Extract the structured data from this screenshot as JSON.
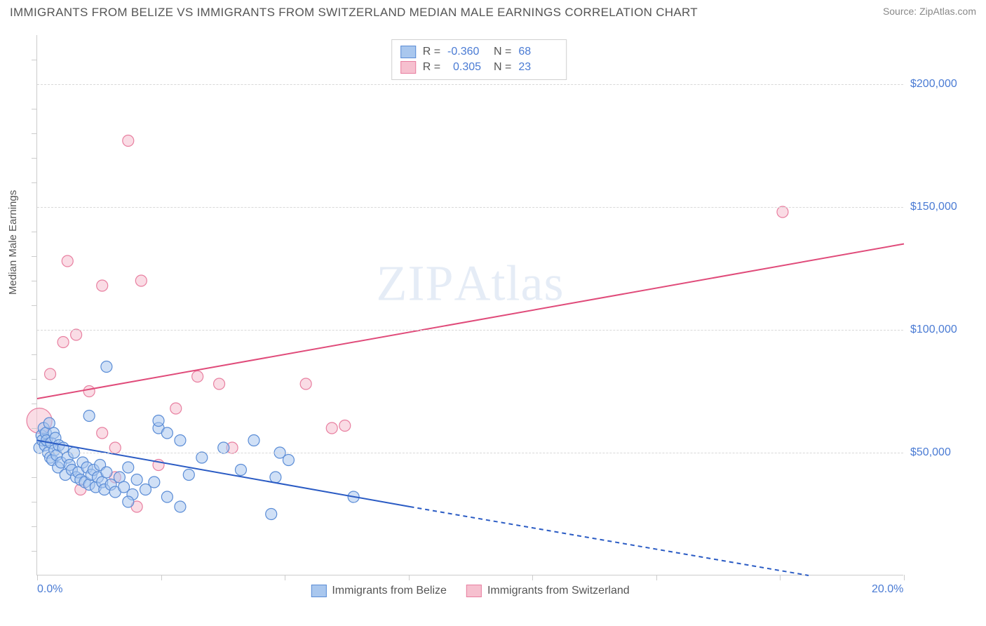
{
  "title": "IMMIGRANTS FROM BELIZE VS IMMIGRANTS FROM SWITZERLAND MEDIAN MALE EARNINGS CORRELATION CHART",
  "source": "Source: ZipAtlas.com",
  "ylabel": "Median Male Earnings",
  "watermark": "ZIPAtlas",
  "chart": {
    "type": "scatter",
    "background_color": "#ffffff",
    "grid_color": "#d8d8d8",
    "axis_color": "#cccccc",
    "tick_label_color": "#4a7bd4",
    "xlim": [
      0,
      20
    ],
    "ylim": [
      0,
      220000
    ],
    "x_ticks": [
      0,
      2.86,
      5.71,
      8.57,
      11.43,
      14.29,
      17.14,
      20
    ],
    "x_tick_labels": {
      "0": "0.0%",
      "20": "20.0%"
    },
    "y_grid": [
      50000,
      100000,
      150000,
      200000
    ],
    "y_tick_labels": [
      "$50,000",
      "$100,000",
      "$150,000",
      "$200,000"
    ],
    "y_minor_ticks": [
      10000,
      20000,
      30000,
      40000,
      60000,
      70000,
      80000,
      90000,
      110000,
      120000,
      130000,
      140000,
      160000,
      170000,
      180000,
      190000,
      210000
    ],
    "series": [
      {
        "name": "Immigrants from Belize",
        "color_fill": "#a9c7ee",
        "color_stroke": "#5a8cd6",
        "marker_radius": 8,
        "fill_opacity": 0.55,
        "R": "-0.360",
        "N": "68",
        "trend": {
          "x1": 0,
          "y1": 55000,
          "x2": 8.6,
          "y2": 28000,
          "dash_x2": 17.8,
          "dash_y2": 0,
          "color": "#2a5bc4",
          "width": 2
        },
        "points": [
          [
            0.05,
            52000
          ],
          [
            0.1,
            57000
          ],
          [
            0.12,
            55000
          ],
          [
            0.15,
            60000
          ],
          [
            0.18,
            53000
          ],
          [
            0.2,
            58000
          ],
          [
            0.22,
            55000
          ],
          [
            0.25,
            50000
          ],
          [
            0.28,
            62000
          ],
          [
            0.3,
            48000
          ],
          [
            0.32,
            54000
          ],
          [
            0.35,
            47000
          ],
          [
            0.38,
            58000
          ],
          [
            0.4,
            51000
          ],
          [
            0.42,
            56000
          ],
          [
            0.45,
            49000
          ],
          [
            0.48,
            44000
          ],
          [
            0.5,
            53000
          ],
          [
            0.55,
            46000
          ],
          [
            0.6,
            52000
          ],
          [
            0.65,
            41000
          ],
          [
            0.7,
            48000
          ],
          [
            0.75,
            45000
          ],
          [
            0.8,
            43000
          ],
          [
            0.85,
            50000
          ],
          [
            0.9,
            40000
          ],
          [
            0.95,
            42000
          ],
          [
            1.0,
            39000
          ],
          [
            1.05,
            46000
          ],
          [
            1.1,
            38000
          ],
          [
            1.15,
            44000
          ],
          [
            1.2,
            37000
          ],
          [
            1.25,
            41000
          ],
          [
            1.3,
            43000
          ],
          [
            1.35,
            36000
          ],
          [
            1.4,
            40000
          ],
          [
            1.45,
            45000
          ],
          [
            1.5,
            38000
          ],
          [
            1.55,
            35000
          ],
          [
            1.6,
            42000
          ],
          [
            1.7,
            37000
          ],
          [
            1.8,
            34000
          ],
          [
            1.9,
            40000
          ],
          [
            2.0,
            36000
          ],
          [
            2.1,
            44000
          ],
          [
            2.2,
            33000
          ],
          [
            2.3,
            39000
          ],
          [
            2.5,
            35000
          ],
          [
            2.7,
            38000
          ],
          [
            2.8,
            60000
          ],
          [
            3.0,
            32000
          ],
          [
            3.0,
            58000
          ],
          [
            3.3,
            55000
          ],
          [
            3.5,
            41000
          ],
          [
            1.6,
            85000
          ],
          [
            2.8,
            63000
          ],
          [
            3.8,
            48000
          ],
          [
            4.3,
            52000
          ],
          [
            4.7,
            43000
          ],
          [
            5.0,
            55000
          ],
          [
            5.5,
            40000
          ],
          [
            5.8,
            47000
          ],
          [
            5.4,
            25000
          ],
          [
            5.6,
            50000
          ],
          [
            7.3,
            32000
          ],
          [
            3.3,
            28000
          ],
          [
            2.1,
            30000
          ],
          [
            1.2,
            65000
          ]
        ]
      },
      {
        "name": "Immigrants from Switzerland",
        "color_fill": "#f6c0cf",
        "color_stroke": "#e87fa0",
        "marker_radius": 8,
        "fill_opacity": 0.55,
        "R": "0.305",
        "N": "23",
        "trend": {
          "x1": 0,
          "y1": 72000,
          "x2": 20,
          "y2": 135000,
          "color": "#e04b7a",
          "width": 2
        },
        "points": [
          [
            0.05,
            63000,
            18
          ],
          [
            0.3,
            82000
          ],
          [
            0.6,
            95000
          ],
          [
            0.7,
            128000
          ],
          [
            0.9,
            98000
          ],
          [
            1.2,
            75000
          ],
          [
            1.5,
            58000
          ],
          [
            1.8,
            52000
          ],
          [
            1.5,
            118000
          ],
          [
            2.1,
            177000
          ],
          [
            2.4,
            120000
          ],
          [
            2.8,
            45000
          ],
          [
            3.2,
            68000
          ],
          [
            3.7,
            81000
          ],
          [
            4.2,
            78000
          ],
          [
            4.5,
            52000
          ],
          [
            6.2,
            78000
          ],
          [
            6.8,
            60000
          ],
          [
            7.1,
            61000
          ],
          [
            1.0,
            35000
          ],
          [
            1.8,
            40000
          ],
          [
            2.3,
            28000
          ],
          [
            17.2,
            148000
          ]
        ]
      }
    ],
    "legend_top_label_R": "R =",
    "legend_top_label_N": "N ="
  }
}
